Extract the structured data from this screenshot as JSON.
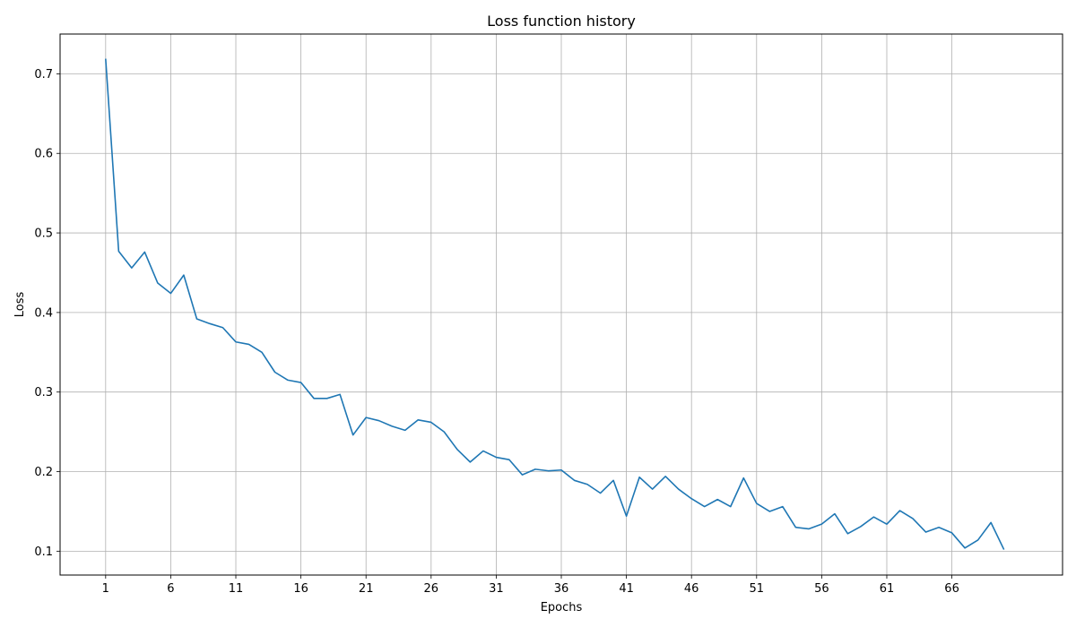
{
  "chart_data": {
    "type": "line",
    "title": "Loss function history",
    "xlabel": "Epochs",
    "ylabel": "Loss",
    "grid": true,
    "xlim": [
      -2.5,
      74.5
    ],
    "ylim": [
      0.07,
      0.75
    ],
    "x_ticks": [
      1,
      6,
      11,
      16,
      21,
      26,
      31,
      36,
      41,
      46,
      51,
      56,
      61,
      66
    ],
    "y_ticks": [
      0.1,
      0.2,
      0.3,
      0.4,
      0.5,
      0.6,
      0.7
    ],
    "series": [
      {
        "color": "#1f77b4",
        "x": [
          1,
          2,
          3,
          4,
          5,
          6,
          7,
          8,
          9,
          10,
          11,
          12,
          13,
          14,
          15,
          16,
          17,
          18,
          19,
          20,
          21,
          22,
          23,
          24,
          25,
          26,
          27,
          28,
          29,
          30,
          31,
          32,
          33,
          34,
          35,
          36,
          37,
          38,
          39,
          40,
          41,
          42,
          43,
          44,
          45,
          46,
          47,
          48,
          49,
          50,
          51,
          52,
          53,
          54,
          55,
          56,
          57,
          58,
          59,
          60,
          61,
          62,
          63,
          64,
          65,
          66,
          67,
          68,
          69,
          70
        ],
        "values": [
          0.719,
          0.477,
          0.456,
          0.476,
          0.437,
          0.424,
          0.447,
          0.392,
          0.386,
          0.381,
          0.363,
          0.36,
          0.35,
          0.325,
          0.315,
          0.312,
          0.292,
          0.292,
          0.297,
          0.246,
          0.268,
          0.264,
          0.257,
          0.252,
          0.265,
          0.262,
          0.25,
          0.228,
          0.212,
          0.226,
          0.218,
          0.215,
          0.196,
          0.203,
          0.201,
          0.202,
          0.189,
          0.184,
          0.173,
          0.189,
          0.144,
          0.193,
          0.178,
          0.194,
          0.178,
          0.166,
          0.156,
          0.165,
          0.156,
          0.192,
          0.16,
          0.15,
          0.156,
          0.13,
          0.128,
          0.134,
          0.147,
          0.122,
          0.131,
          0.143,
          0.134,
          0.151,
          0.141,
          0.124,
          0.13,
          0.123,
          0.104,
          0.114,
          0.136,
          0.102
        ]
      }
    ]
  }
}
